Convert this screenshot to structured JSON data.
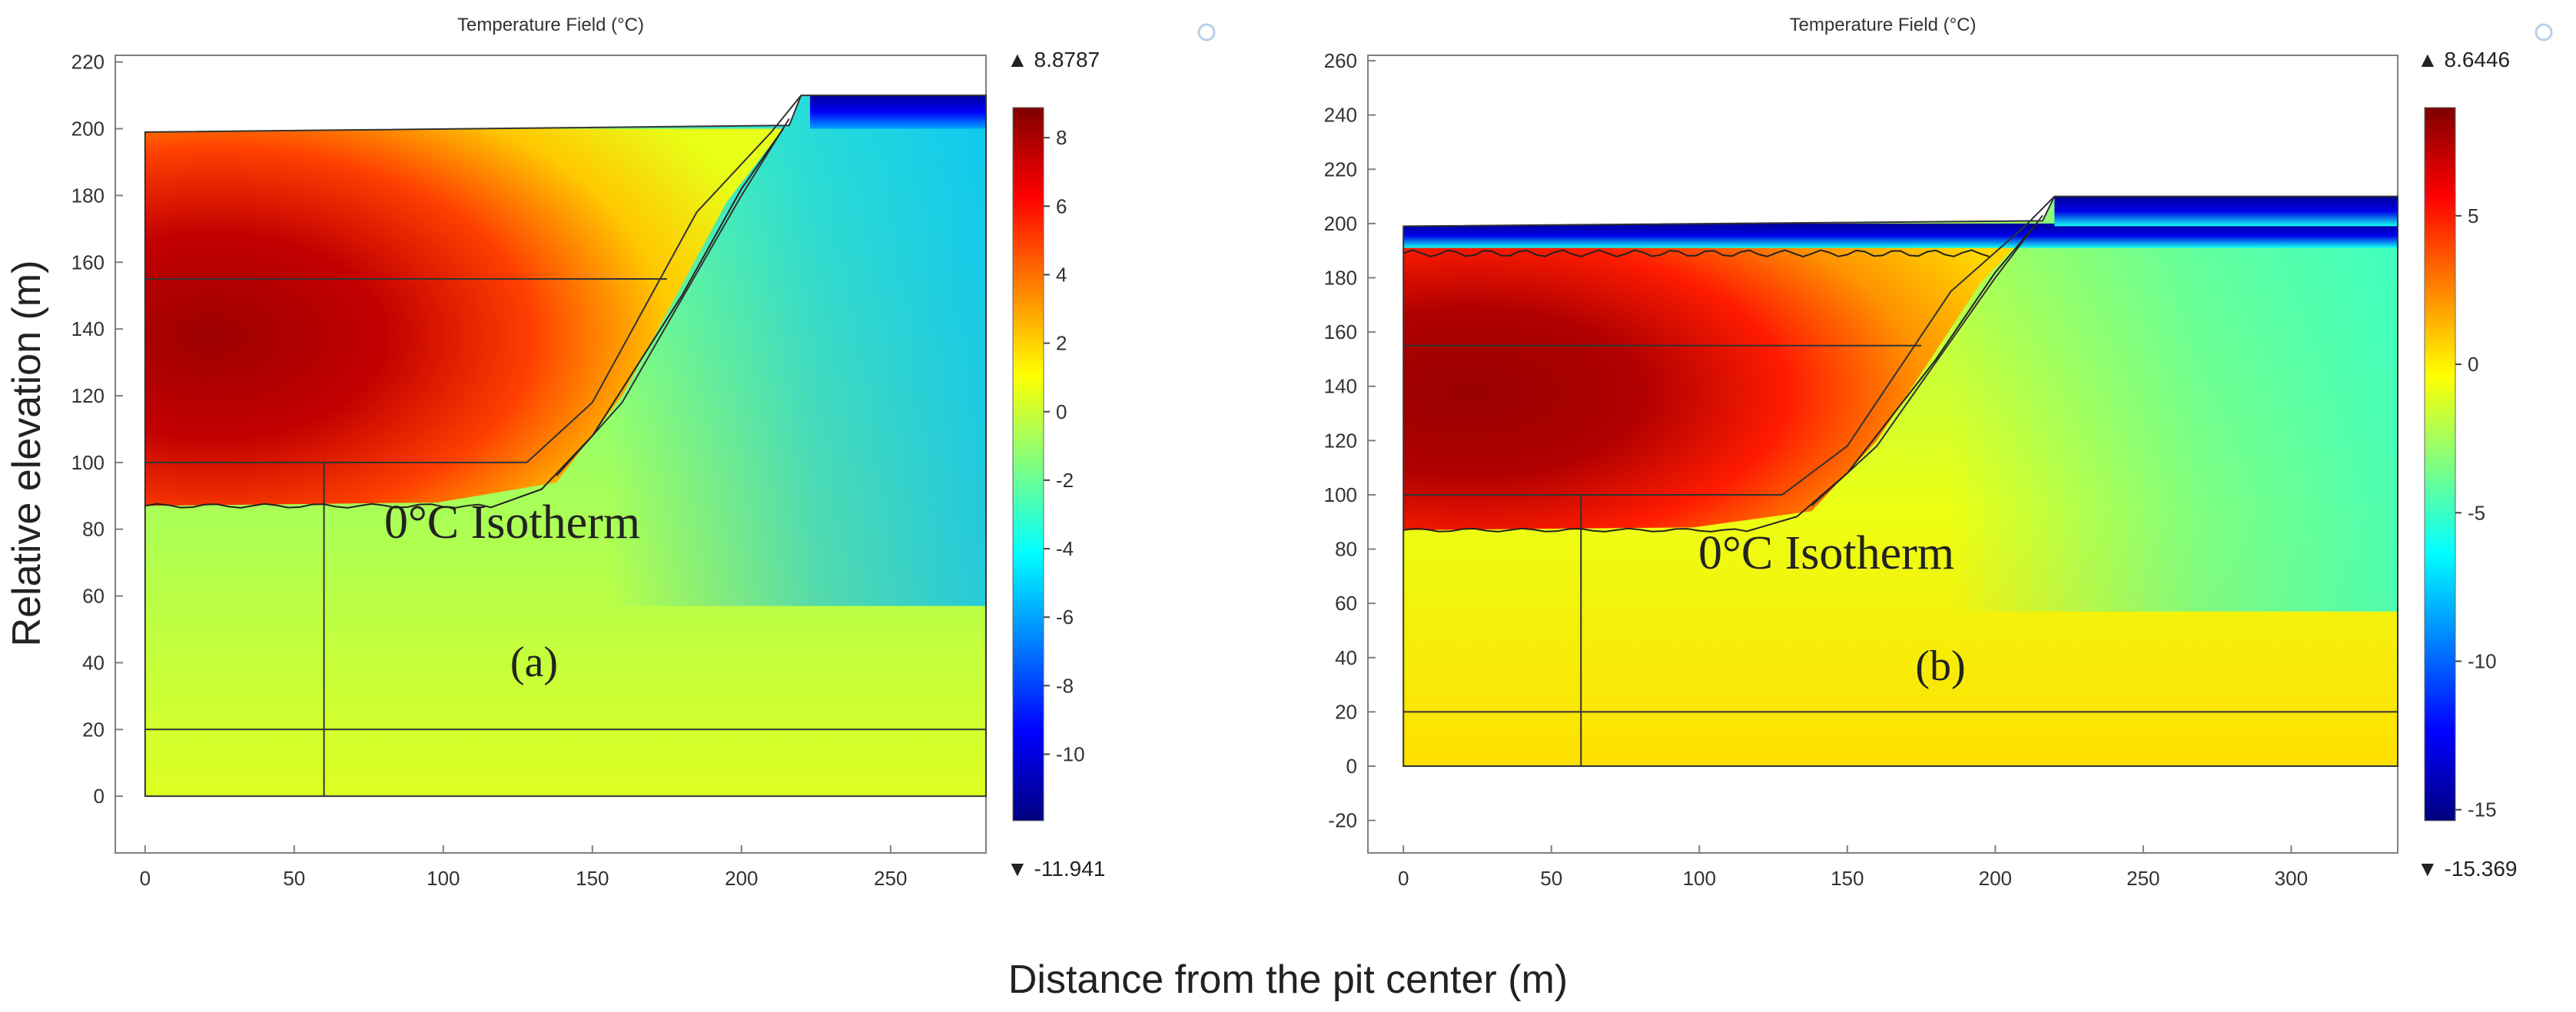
{
  "figure": {
    "ylabel": "Relative elevation (m)",
    "xlabel": "Distance from the pit center (m)"
  },
  "colors": {
    "jet": [
      "#00007f",
      "#0000ff",
      "#0080ff",
      "#00ffff",
      "#80ff80",
      "#ffff00",
      "#ff8000",
      "#ff0000",
      "#7f0000"
    ],
    "outline": "#333333",
    "frame": "#808080"
  },
  "chart_data": [
    {
      "type": "heatmap",
      "panel": "(a)",
      "title": "Temperature Field (°C)",
      "annotation": "0°C Isotherm",
      "xlim": [
        -10,
        282
      ],
      "ylim": [
        -17,
        222
      ],
      "xticks": [
        0,
        50,
        100,
        150,
        200,
        250
      ],
      "yticks": [
        0,
        20,
        40,
        60,
        80,
        100,
        120,
        140,
        160,
        180,
        200,
        220
      ],
      "colorbar": {
        "min": -11.941,
        "max": 8.8787,
        "max_label": "▲ 8.8787",
        "min_label": "▼ -11.941",
        "ticks": [
          8,
          6,
          4,
          2,
          0,
          -2,
          -4,
          -6,
          -8,
          -10
        ]
      },
      "domain_width": 282,
      "ground_top": 199,
      "dump_crest": 210,
      "ramp_toe_x": 220,
      "warm_core": {
        "x": [
          0,
          128
        ],
        "y": [
          100,
          199
        ],
        "t_max": 8.8787
      },
      "isotherm_depth": 87,
      "section_lines": {
        "upper_y": 155,
        "lower_y": 100,
        "base_y": 20,
        "vertical_x": 60
      }
    },
    {
      "type": "heatmap",
      "panel": "(b)",
      "title": "Temperature Field (°C)",
      "annotation": "0°C Isotherm",
      "xlim": [
        -12,
        336
      ],
      "ylim": [
        -32,
        262
      ],
      "xticks": [
        0,
        50,
        100,
        150,
        200,
        250,
        300
      ],
      "yticks": [
        -20,
        0,
        20,
        40,
        60,
        80,
        100,
        120,
        140,
        160,
        180,
        200,
        220,
        240,
        260
      ],
      "colorbar": {
        "min": -15.369,
        "max": 8.6446,
        "max_label": "▲ 8.6446",
        "min_label": "▼ -15.369",
        "ticks": [
          5,
          0,
          -5,
          -10,
          -15
        ]
      },
      "domain_width": 336,
      "ground_top": 199,
      "dump_crest": 210,
      "ramp_toe_x": 220,
      "warm_core": {
        "x": [
          0,
          128
        ],
        "y": [
          100,
          190
        ],
        "t_max": 8.6446
      },
      "isotherm_depth": 87,
      "section_lines": {
        "upper_y": 155,
        "lower_y": 100,
        "base_y": 20,
        "vertical_x": 60
      }
    }
  ]
}
